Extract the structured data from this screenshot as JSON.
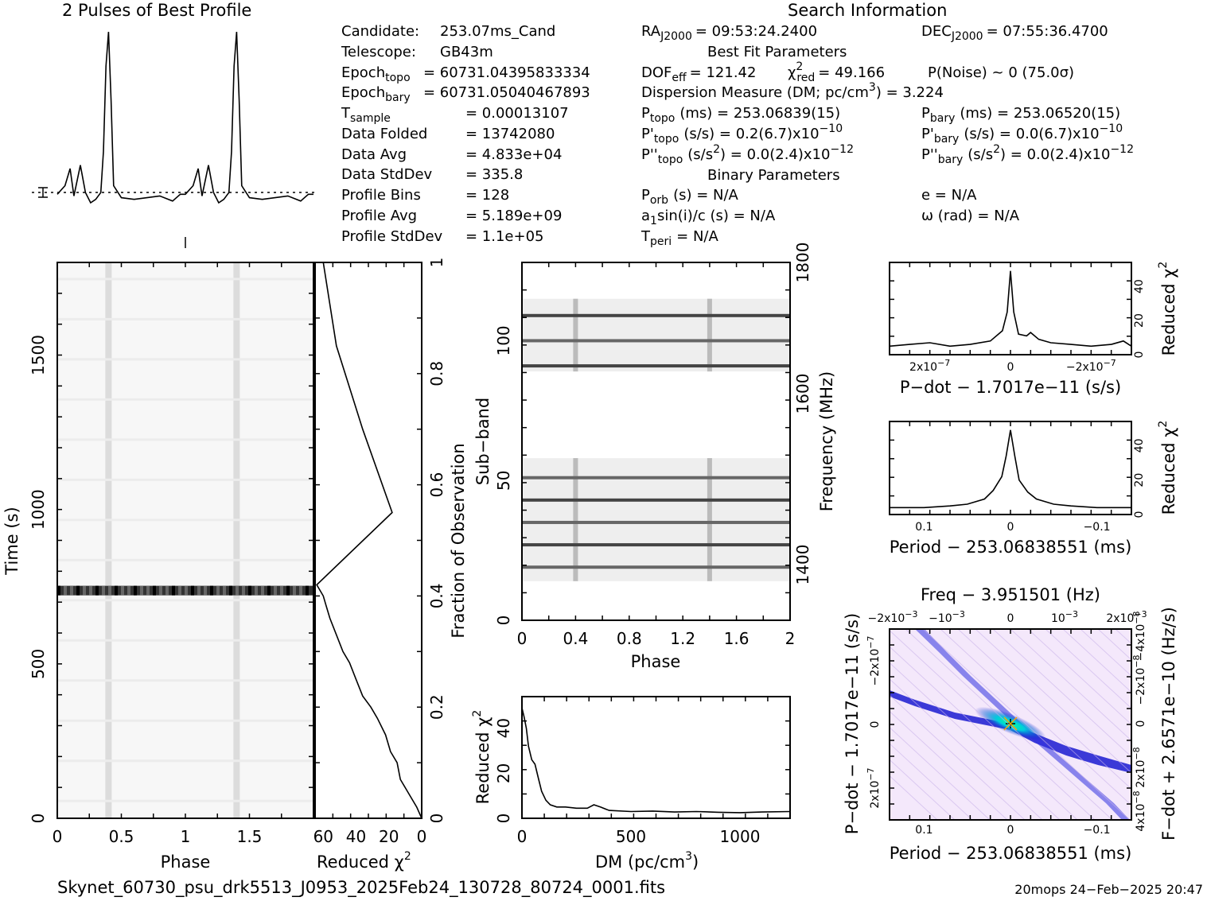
{
  "header": {
    "profile_title": "2 Pulses of Best Profile",
    "search_title": "Search Information",
    "best_fit_title": "Best Fit Parameters",
    "binary_title": "Binary Parameters"
  },
  "info_left": [
    {
      "label": "Candidate:",
      "value": "253.07ms_Cand"
    },
    {
      "label": "Telescope:",
      "value": "GB43m"
    },
    {
      "label": "Epoch",
      "sub": "topo",
      "value": "= 60731.04395833334"
    },
    {
      "label": "Epoch",
      "sub": "bary",
      "value": "= 60731.05040467893"
    },
    {
      "label": "T",
      "sub": "sample",
      "value": "=   0.00013107"
    },
    {
      "label": "Data Folded",
      "value": "=   13742080"
    },
    {
      "label": "Data Avg",
      "value": "=   4.833e+04"
    },
    {
      "label": "Data StdDev",
      "value": "=   335.8"
    },
    {
      "label": "Profile Bins",
      "value": "=   128"
    },
    {
      "label": "Profile Avg",
      "value": "=   5.189e+09"
    },
    {
      "label": "Profile StdDev",
      "value": "=   1.1e+05"
    }
  ],
  "info_mid": {
    "ra": {
      "label": "RA",
      "sub": "J2000",
      "value": "= 09:53:24.2400"
    },
    "dec": {
      "label": "DEC",
      "sub": "J2000",
      "value": "= 07:55:36.4700"
    },
    "dof": {
      "label": "DOF",
      "sub": "eff",
      "value": "= 121.42"
    },
    "chi2": {
      "label": "χ",
      "sup": "2",
      "sub": "red",
      "value": "= 49.166"
    },
    "pnoise": "P(Noise) ~ 0    (75.0σ)",
    "dm": "Dispersion Measure (DM; pc/cm",
    "dm_sup": "3",
    "dm_value": ") = 3.224",
    "ptopo": {
      "label": "P",
      "sub": "topo",
      "value": "(ms) =  253.06839(15)"
    },
    "pbary": {
      "label": "P",
      "sub": "bary",
      "value": "(ms) =  253.06520(15)"
    },
    "pdtopo": {
      "label": "P'",
      "sub": "topo",
      "value": "(s/s) =  0.2(6.7)x10",
      "exp": "−10"
    },
    "pdbary": {
      "label": "P'",
      "sub": "bary",
      "value": "(s/s) = 0.0(6.7)x10",
      "exp": "−10"
    },
    "pddtopo": {
      "label": "P''",
      "sub": "topo",
      "value": "(s/s",
      "sup": "2",
      "value2": ") = 0.0(2.4)x10",
      "exp": "−12"
    },
    "pddbary": {
      "label": "P''",
      "sub": "bary",
      "value": "(s/s",
      "sup": "2",
      "value2": ") = 0.0(2.4)x10",
      "exp": "−12"
    },
    "porb": {
      "label": "P",
      "sub": "orb",
      "value": "(s) = N/A"
    },
    "e": "e = N/A",
    "a1": {
      "label": "a",
      "sub": "1",
      "value": "sin(i)/c (s) = N/A"
    },
    "omega": "ω (rad) = N/A",
    "tperi": {
      "label": "T",
      "sub": "peri",
      "value": "= N/A"
    }
  },
  "footer": {
    "filename": "Skynet_60730_psu_drk5513_J0953_2025Feb24_130728_80724_0001.fits",
    "stamp": "20mops 24−Feb−2025 20:47"
  },
  "colors": {
    "ink": "#000000",
    "ppdot_low": "#ffffff",
    "ppdot_mid": "#0000cc",
    "ppdot_high": "#00ffcc"
  },
  "chart_data": [
    {
      "id": "profile",
      "type": "line",
      "title": "2 Pulses of Best Profile",
      "x_range": [
        0,
        2
      ],
      "error_bar_label": "",
      "phase": [
        0.0,
        0.06,
        0.1,
        0.13,
        0.18,
        0.22,
        0.26,
        0.3,
        0.34,
        0.36,
        0.38,
        0.4,
        0.42,
        0.44,
        0.5,
        0.6,
        0.7,
        0.8,
        0.9,
        0.96,
        1.0,
        1.06,
        1.1,
        1.13,
        1.18,
        1.22,
        1.26,
        1.3,
        1.34,
        1.36,
        1.38,
        1.4,
        1.42,
        1.44,
        1.5,
        1.6,
        1.7,
        1.8,
        1.9,
        1.96,
        2.0
      ],
      "values": [
        0.05,
        0.1,
        0.2,
        0.04,
        0.22,
        0.06,
        0.0,
        0.02,
        0.06,
        0.3,
        0.8,
        1.0,
        0.6,
        0.1,
        0.03,
        0.02,
        0.03,
        0.04,
        0.01,
        0.05,
        0.05,
        0.1,
        0.2,
        0.04,
        0.22,
        0.06,
        0.0,
        0.02,
        0.06,
        0.3,
        0.8,
        1.0,
        0.6,
        0.1,
        0.03,
        0.02,
        0.03,
        0.04,
        0.01,
        0.05,
        0.05
      ]
    },
    {
      "id": "time-phase",
      "type": "heatmap",
      "xlabel": "Phase",
      "ylabel": "Time (s)",
      "x_ticks": [
        "0",
        "0.5",
        "1",
        "1.5"
      ],
      "y_ticks": [
        "0",
        "500",
        "1000",
        "1500"
      ],
      "x_range": [
        0,
        2
      ],
      "y_range": [
        0,
        1800
      ],
      "pulse_phases": [
        0.4,
        1.4
      ],
      "bright_band_time": 740
    },
    {
      "id": "reduced-chi2-vs-time",
      "type": "line",
      "xlabel": "Reduced χ",
      "xlabel_sup": "2",
      "ylabel": "Fraction of Observation",
      "x_ticks": [
        "60",
        "40",
        "20",
        "0"
      ],
      "y_ticks": [
        "0",
        "0.2",
        "0.4",
        "0.6",
        "0.8",
        "1"
      ],
      "x_range": [
        65,
        0
      ],
      "fraction": [
        0,
        0.02,
        0.05,
        0.07,
        0.1,
        0.12,
        0.15,
        0.18,
        0.2,
        0.22,
        0.25,
        0.28,
        0.3,
        0.33,
        0.36,
        0.38,
        0.4,
        0.41,
        0.42,
        0.55,
        0.7,
        0.85,
        1.0
      ],
      "chi2": [
        0,
        3,
        9,
        13,
        15,
        19,
        22,
        27,
        31,
        36,
        40,
        44,
        48,
        52,
        56,
        58,
        60,
        62,
        64,
        18,
        36,
        52,
        60
      ]
    },
    {
      "id": "subband-phase",
      "type": "heatmap",
      "xlabel": "Phase",
      "ylabel": "Sub−band",
      "ylabel2": "Frequency (MHz)",
      "x_ticks": [
        "0",
        "0.4",
        "0.8",
        "1.2",
        "1.6",
        "2"
      ],
      "y_ticks": [
        "0",
        "50",
        "100"
      ],
      "y2_ticks": [
        "1400",
        "1600",
        "1800"
      ],
      "x_range": [
        0,
        2
      ],
      "y_range": [
        0,
        128
      ],
      "data_bands": [
        [
          14,
          58
        ],
        [
          89,
          115
        ]
      ],
      "dark_rows": [
        19,
        27,
        35,
        43,
        51,
        91,
        100,
        109
      ],
      "pulse_phases": [
        0.4,
        1.4
      ]
    },
    {
      "id": "dm-chi2",
      "type": "line",
      "xlabel": "DM (pc/cm",
      "xlabel_sup": "3",
      "ylabel": "Reduced χ",
      "ylabel_sup": "2",
      "x_ticks": [
        "0",
        "500",
        "1000"
      ],
      "y_ticks": [
        "0",
        "20",
        "40"
      ],
      "x_range": [
        0,
        1230
      ],
      "y_range": [
        0,
        54
      ],
      "dm": [
        0,
        10,
        20,
        30,
        45,
        60,
        75,
        90,
        110,
        130,
        160,
        200,
        250,
        300,
        330,
        360,
        400,
        500,
        600,
        700,
        800,
        900,
        1000,
        1100,
        1230
      ],
      "chi2": [
        49,
        45,
        40,
        32,
        26,
        24,
        18,
        12,
        8,
        6,
        5,
        5,
        4.5,
        4.5,
        6,
        5,
        3.5,
        3,
        3.2,
        2.8,
        3,
        2.7,
        2.5,
        2.8,
        3
      ]
    },
    {
      "id": "pdot-chi2",
      "type": "line",
      "xlabel": "P−dot − 1.7017e−11 (s/s)",
      "ylabel": "Reduced χ",
      "ylabel_sup": "2",
      "x_ticks": [
        "2x10",
        "0",
        "−2x10"
      ],
      "x_tick_exp": "−7",
      "y_ticks": [
        "0",
        "20",
        "40"
      ],
      "x_range": [
        3e-07,
        -3e-07
      ],
      "y_range": [
        0,
        54
      ],
      "x": [
        3e-07,
        2.5e-07,
        2e-07,
        1.5e-07,
        1e-07,
        5e-08,
        2e-08,
        8e-09,
        0.0,
        -8e-09,
        -2e-08,
        -4e-08,
        -5e-08,
        -7e-08,
        -1e-07,
        -1.5e-07,
        -2e-07,
        -2.5e-07,
        -2.8e-07,
        -3e-07
      ],
      "chi2": [
        5,
        6,
        7,
        5,
        6,
        8,
        14,
        25,
        49,
        25,
        12,
        11,
        13,
        9,
        7,
        6,
        5,
        6,
        8,
        5
      ]
    },
    {
      "id": "period-chi2",
      "type": "line",
      "xlabel": "Period − 253.06838551 (ms)",
      "ylabel": "Reduced χ",
      "ylabel_sup": "2",
      "x_ticks": [
        "0.1",
        "0",
        "−0.1"
      ],
      "y_ticks": [
        "0",
        "20",
        "40"
      ],
      "x_range": [
        0.14,
        -0.14
      ],
      "y_range": [
        0,
        54
      ],
      "x": [
        0.14,
        0.1,
        0.07,
        0.05,
        0.03,
        0.02,
        0.01,
        0.005,
        0.0,
        -0.005,
        -0.01,
        -0.02,
        -0.03,
        -0.05,
        -0.07,
        -0.1,
        -0.14
      ],
      "chi2": [
        4,
        4,
        5,
        6,
        9,
        14,
        22,
        34,
        49,
        34,
        20,
        13,
        9,
        6,
        5,
        4,
        4
      ]
    },
    {
      "id": "p-pdot",
      "type": "heatmap",
      "title": "Freq − 3.951501 (Hz)",
      "xlabel": "Period − 253.06838551 (ms)",
      "ylabel": "P−dot − 1.7017e−11 (s/s)",
      "ylabel2": "F−dot + 2.6571e−10 (Hz/s)",
      "x_ticks": [
        "0.1",
        "0",
        "−0.1"
      ],
      "top_ticks": [
        "−2x10",
        "−10",
        "0",
        "10",
        "2x10"
      ],
      "top_tick_exp": "−3",
      "y_ticks": [
        "−2x10",
        "0",
        "2x10"
      ],
      "y_tick_exp": "−7",
      "y2_ticks": [
        "−4x10",
        "−2x10",
        "0",
        "2x10",
        "4x10"
      ],
      "y2_tick_exp": "−8",
      "x_range": [
        0.14,
        -0.14
      ],
      "y_range": [
        -3e-07,
        3e-07
      ],
      "peak": [
        0,
        0
      ]
    }
  ]
}
